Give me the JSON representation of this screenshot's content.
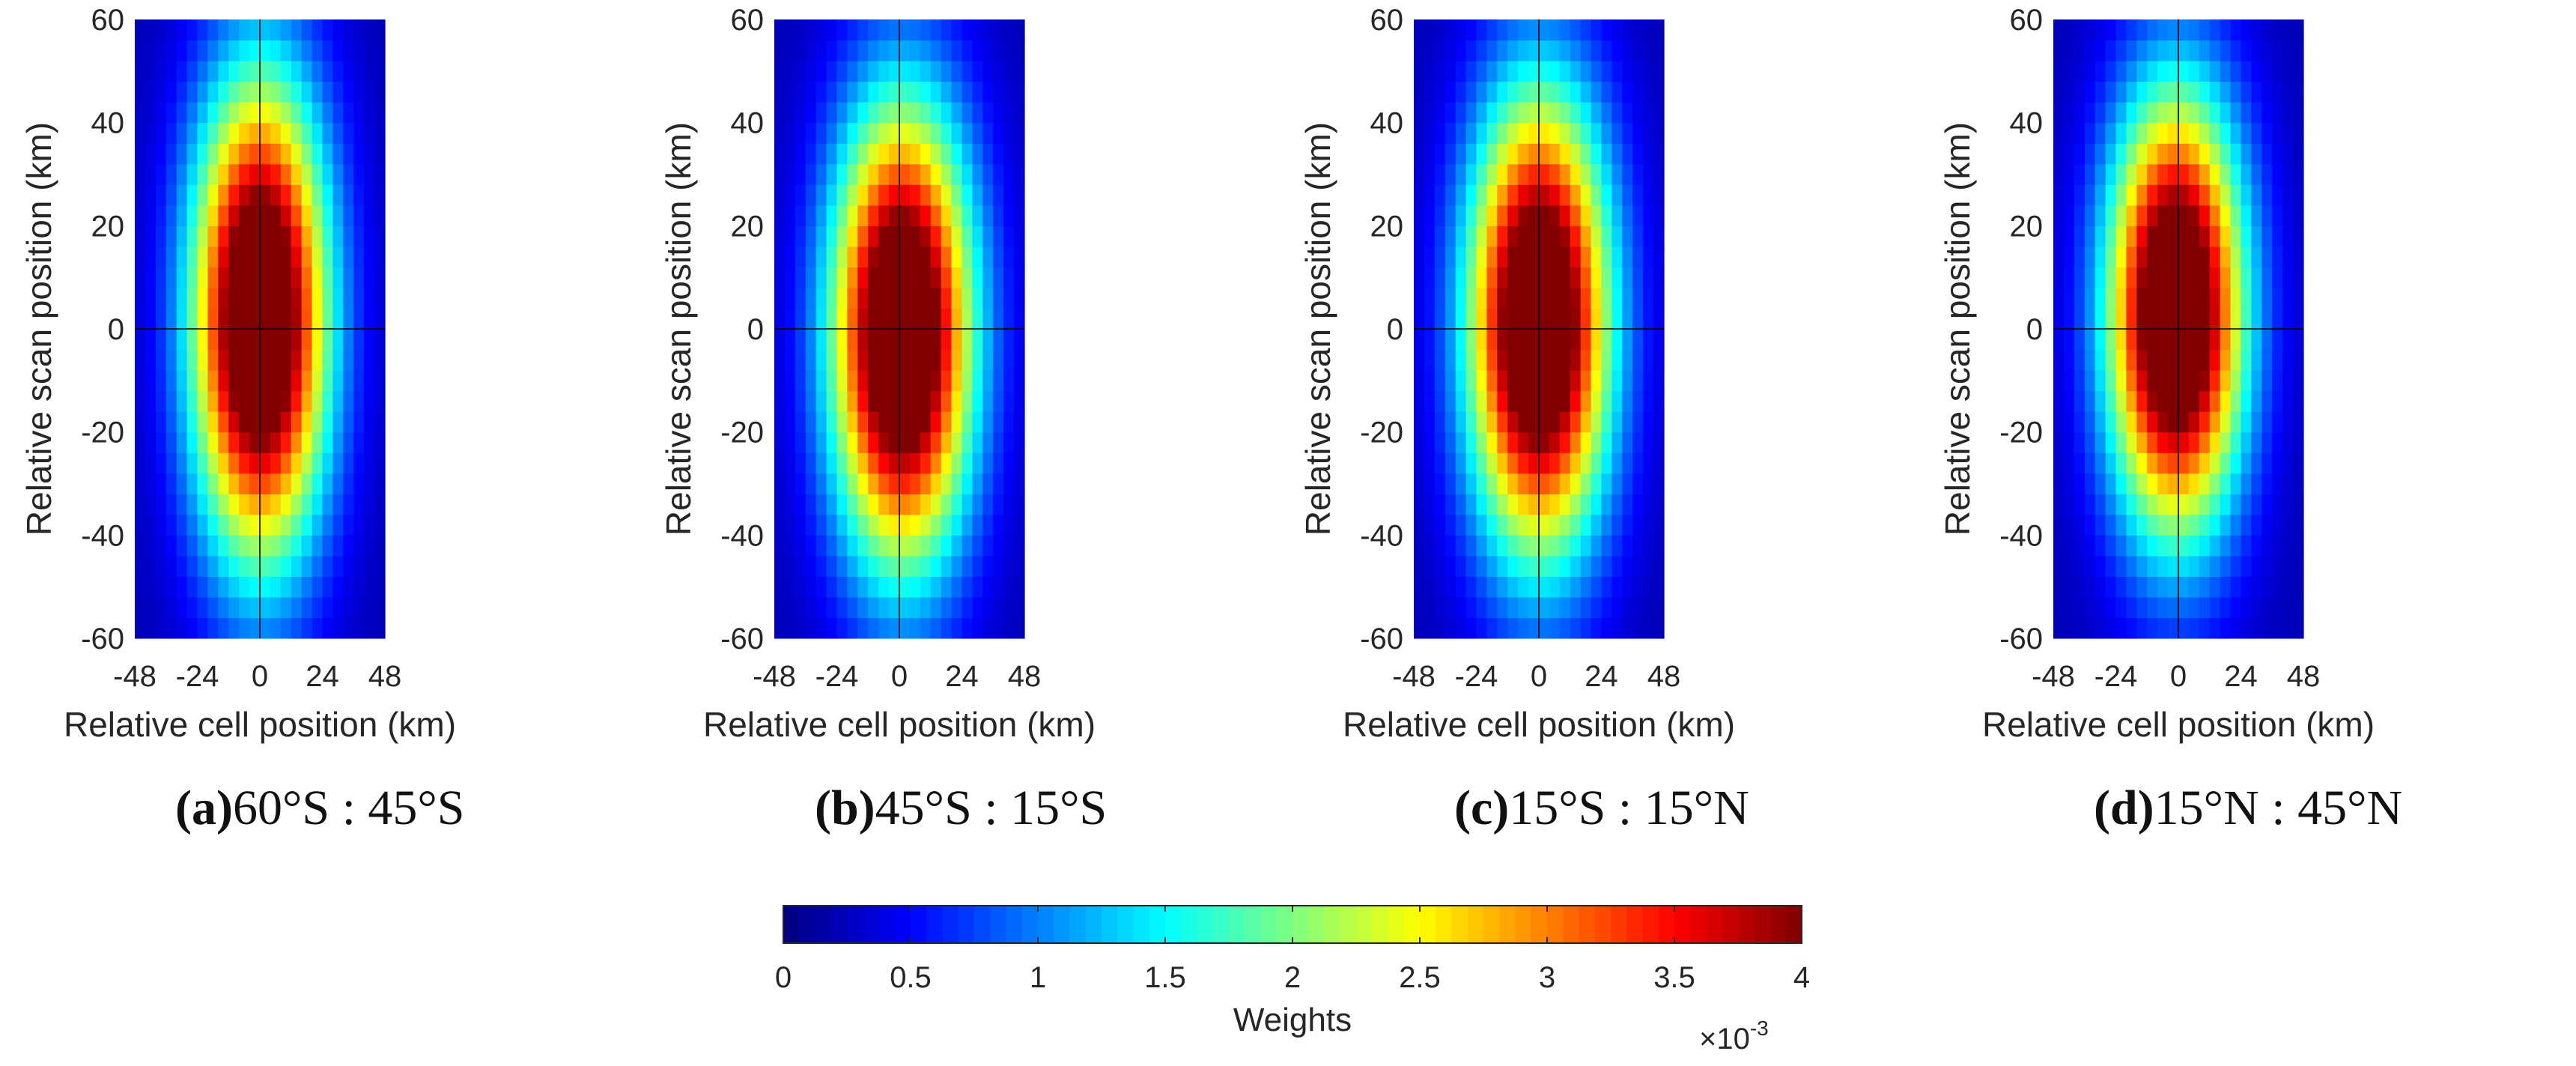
{
  "chart_data": [
    {
      "type": "heatmap",
      "panel_letter": "(a)",
      "panel_label": "60°S : 45°S",
      "xlabel": "Relative cell position (km)",
      "ylabel": "Relative scan position (km)",
      "xlim": [
        -48,
        48
      ],
      "ylim": [
        -60,
        60
      ],
      "xticks": [
        "-48",
        "-24",
        "0",
        "24",
        "48"
      ],
      "yticks": [
        "60",
        "40",
        "20",
        "0",
        "-20",
        "-40",
        "-60"
      ],
      "grid_cells": [
        24,
        30
      ],
      "peak_center_km": [
        0,
        2
      ],
      "semi_axes_km": [
        25,
        45
      ],
      "peak_weight": 0.0052,
      "floor_weight": 0.0002
    },
    {
      "type": "heatmap",
      "panel_letter": "(b)",
      "panel_label": "45°S : 15°S",
      "xlabel": "Relative cell position (km)",
      "ylabel": "Relative scan position (km)",
      "xlim": [
        -48,
        48
      ],
      "ylim": [
        -60,
        60
      ],
      "xticks": [
        "-48",
        "-24",
        "0",
        "24",
        "48"
      ],
      "yticks": [
        "60",
        "40",
        "20",
        "0",
        "-20",
        "-40",
        "-60"
      ],
      "grid_cells": [
        24,
        30
      ],
      "peak_center_km": [
        1,
        -1
      ],
      "semi_axes_km": [
        26,
        43
      ],
      "peak_weight": 0.0052,
      "floor_weight": 0.0002
    },
    {
      "type": "heatmap",
      "panel_letter": "(c)",
      "panel_label": "15°S : 15°N",
      "xlabel": "Relative cell position (km)",
      "ylabel": "Relative scan position (km)",
      "xlim": [
        -48,
        48
      ],
      "ylim": [
        -60,
        60
      ],
      "xticks": [
        "-48",
        "-24",
        "0",
        "24",
        "48"
      ],
      "yticks": [
        "60",
        "40",
        "20",
        "0",
        "-20",
        "-40",
        "-60"
      ],
      "grid_cells": [
        24,
        30
      ],
      "peak_center_km": [
        0,
        1
      ],
      "semi_axes_km": [
        26,
        43
      ],
      "peak_weight": 0.0052,
      "floor_weight": 0.0002
    },
    {
      "type": "heatmap",
      "panel_letter": "(d)",
      "panel_label": "15°N : 45°N",
      "xlabel": "Relative cell position (km)",
      "ylabel": "Relative scan position (km)",
      "xlim": [
        -48,
        48
      ],
      "ylim": [
        -60,
        60
      ],
      "xticks": [
        "-48",
        "-24",
        "0",
        "24",
        "48"
      ],
      "yticks": [
        "60",
        "40",
        "20",
        "0",
        "-20",
        "-40",
        "-60"
      ],
      "grid_cells": [
        24,
        30
      ],
      "peak_center_km": [
        -1,
        3
      ],
      "semi_axes_km": [
        25,
        41
      ],
      "peak_weight": 0.0052,
      "floor_weight": 0.0002
    }
  ],
  "colorbar": {
    "label": "Weights",
    "colormap": "jet",
    "range": [
      0,
      0.004
    ],
    "ticks": [
      "0",
      "0.5",
      "1",
      "1.5",
      "2",
      "2.5",
      "3",
      "3.5",
      "4"
    ],
    "multiplier": "×10",
    "multiplier_exp": "-3"
  }
}
